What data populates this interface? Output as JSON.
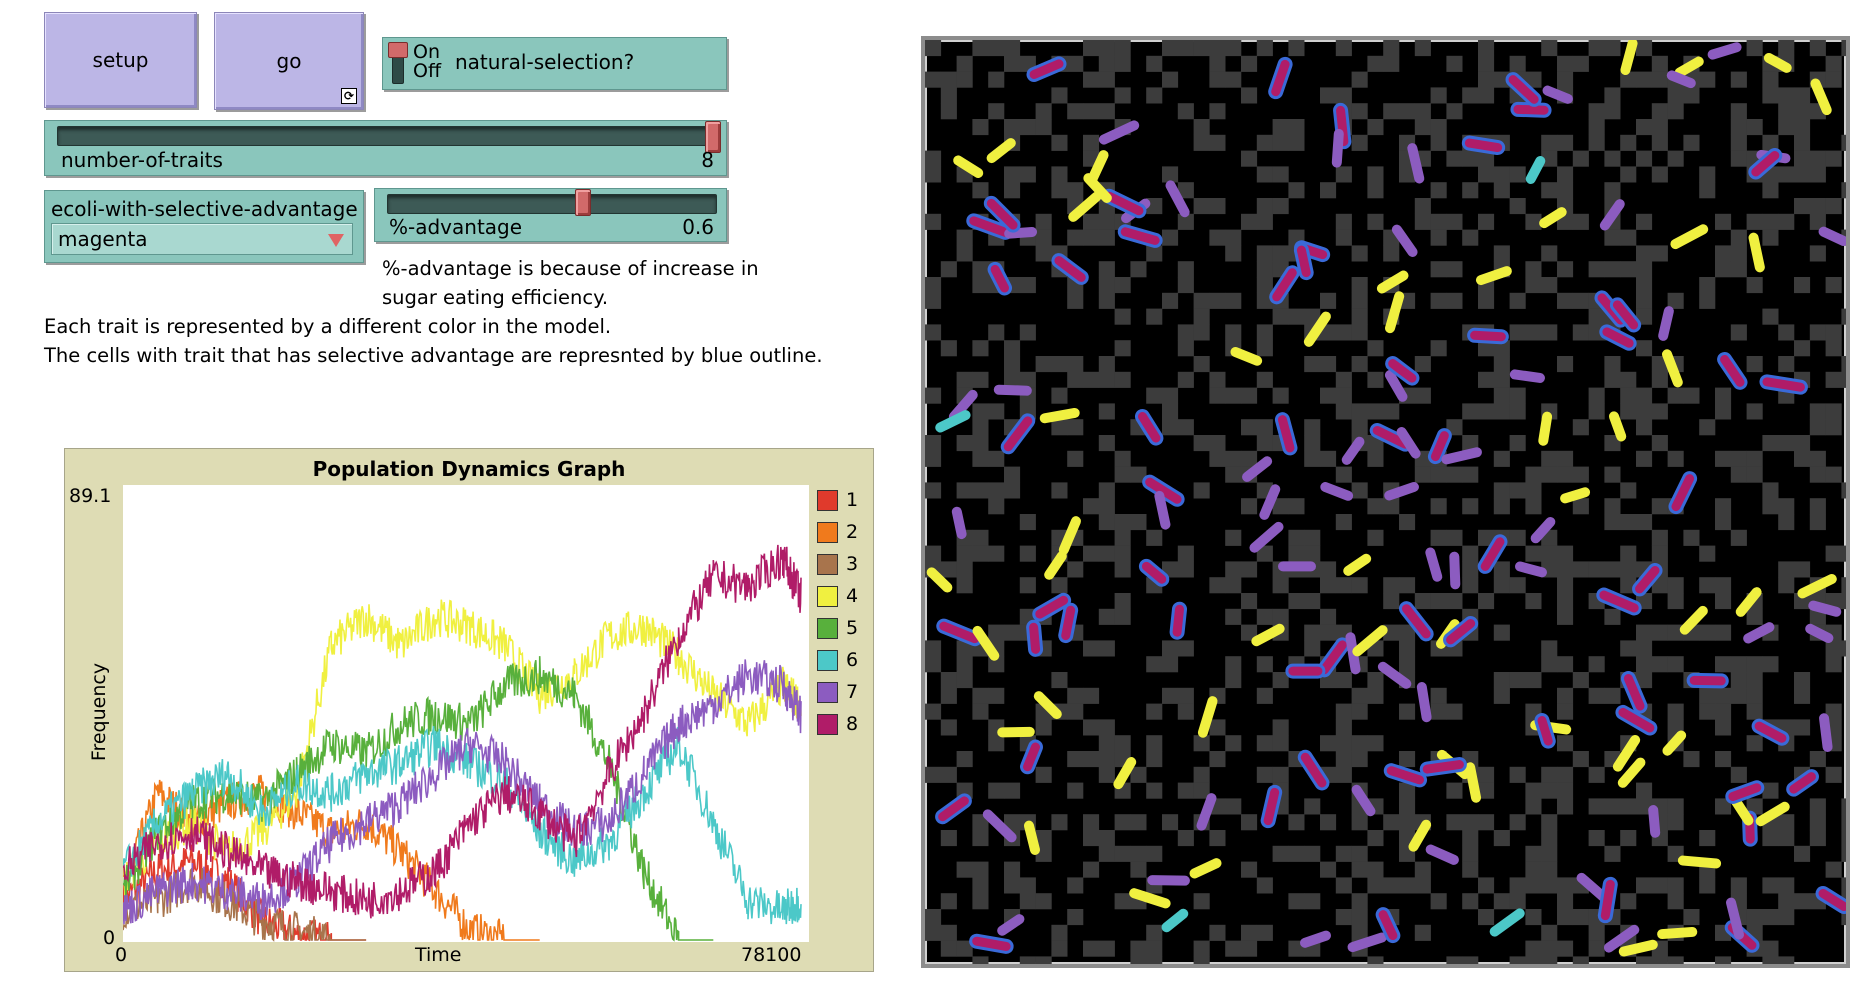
{
  "buttons": {
    "setup_label": "setup",
    "go_label": "go",
    "go_forever_icon": "forever-icon"
  },
  "switch": {
    "on_label": "On",
    "off_label": "Off",
    "name": "natural-selection?",
    "state": "off"
  },
  "traits_slider": {
    "name": "number-of-traits",
    "value": "8",
    "fraction": 1.0
  },
  "chooser": {
    "name": "ecoli-with-selective-advantage",
    "selected": "magenta"
  },
  "advantage_slider": {
    "name": "%-advantage",
    "value": "0.6",
    "fraction": 0.6
  },
  "notes": {
    "advantage_line1": "%-advantage is because of increase in",
    "advantage_line2": "sugar eating efficiency.",
    "trait_line1": "Each trait is represented by a different color in the model.",
    "trait_line2": "The cells with trait that has selective advantage are represnted by blue outline."
  },
  "plot": {
    "title": "Population Dynamics Graph",
    "ylabel": "Frequency",
    "xlabel": "Time",
    "y_max_label": "89.1",
    "y_min_label": "0",
    "x_min_label": "0",
    "x_max_label": "78100",
    "legend": [
      {
        "label": "1",
        "color": "#e03a2c"
      },
      {
        "label": "2",
        "color": "#f07a1c"
      },
      {
        "label": "3",
        "color": "#a8744c"
      },
      {
        "label": "4",
        "color": "#f0f040"
      },
      {
        "label": "5",
        "color": "#58b03c"
      },
      {
        "label": "6",
        "color": "#4cc8c8"
      },
      {
        "label": "7",
        "color": "#8c5cc0"
      },
      {
        "label": "8",
        "color": "#b01c68"
      }
    ]
  },
  "colors": {
    "button_bg": "#bcb6e6",
    "widget_bg": "#8ac6bc",
    "plot_bg": "#dedcb4",
    "world_bg": "#000000",
    "sugar_patch": "#3c3c3c",
    "advantage_outline": "#3a6ad8"
  },
  "chart_data": {
    "type": "line",
    "title": "Population Dynamics Graph",
    "xlabel": "Time",
    "ylabel": "Frequency",
    "xlim": [
      0,
      78100
    ],
    "ylim": [
      0,
      89.1
    ],
    "x": [
      0,
      4000,
      8000,
      12000,
      16000,
      20000,
      24000,
      28000,
      32000,
      36000,
      40000,
      44000,
      48000,
      52000,
      56000,
      60000,
      64000,
      68000,
      72000,
      76000,
      78100
    ],
    "series": [
      {
        "name": "1",
        "values": [
          8,
          14,
          16,
          12,
          4,
          1,
          0,
          null,
          null,
          null,
          null,
          null,
          null,
          null,
          null,
          null,
          null,
          null,
          null,
          null,
          null
        ]
      },
      {
        "name": "2",
        "values": [
          10,
          30,
          24,
          28,
          30,
          26,
          22,
          24,
          18,
          10,
          2,
          0,
          null,
          null,
          null,
          null,
          null,
          null,
          null,
          null,
          null
        ]
      },
      {
        "name": "3",
        "values": [
          6,
          8,
          12,
          8,
          4,
          2,
          0,
          null,
          null,
          null,
          null,
          null,
          null,
          null,
          null,
          null,
          null,
          null,
          null,
          null,
          null
        ]
      },
      {
        "name": "4",
        "values": [
          12,
          20,
          24,
          18,
          22,
          30,
          60,
          66,
          60,
          66,
          64,
          60,
          50,
          54,
          62,
          64,
          58,
          50,
          44,
          52,
          48
        ]
      },
      {
        "name": "5",
        "values": [
          10,
          22,
          28,
          30,
          28,
          34,
          40,
          38,
          44,
          46,
          44,
          52,
          54,
          50,
          36,
          14,
          0,
          null,
          null,
          null,
          null
        ]
      },
      {
        "name": "6",
        "values": [
          14,
          24,
          30,
          34,
          26,
          32,
          30,
          34,
          36,
          40,
          36,
          32,
          22,
          16,
          20,
          30,
          40,
          24,
          8,
          6,
          8
        ]
      },
      {
        "name": "7",
        "values": [
          6,
          10,
          12,
          10,
          8,
          12,
          20,
          24,
          28,
          34,
          40,
          36,
          28,
          22,
          24,
          34,
          44,
          48,
          54,
          52,
          46
        ]
      },
      {
        "name": "8",
        "values": [
          14,
          20,
          22,
          18,
          14,
          12,
          10,
          8,
          10,
          14,
          24,
          30,
          26,
          20,
          34,
          46,
          62,
          74,
          72,
          78,
          70
        ]
      }
    ]
  }
}
